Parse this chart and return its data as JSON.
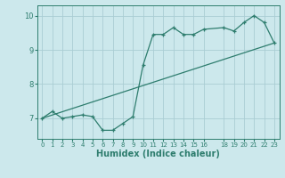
{
  "xlabel": "Humidex (Indice chaleur)",
  "bg_color": "#cce8ec",
  "grid_color": "#aacdd4",
  "line_color": "#2e7d6e",
  "curve_x": [
    0,
    1,
    2,
    3,
    4,
    5,
    6,
    7,
    8,
    9,
    10,
    11,
    12,
    13,
    14,
    15,
    16,
    18,
    19,
    20,
    21,
    22,
    23
  ],
  "curve_y": [
    7.0,
    7.2,
    7.0,
    7.05,
    7.1,
    7.05,
    6.65,
    6.65,
    6.85,
    7.05,
    8.55,
    9.45,
    9.45,
    9.65,
    9.45,
    9.45,
    9.6,
    9.65,
    9.55,
    9.8,
    10.0,
    9.8,
    9.2
  ],
  "trend_x": [
    0,
    23
  ],
  "trend_y": [
    7.0,
    9.2
  ],
  "xlim": [
    -0.5,
    23.5
  ],
  "ylim": [
    6.4,
    10.3
  ],
  "yticks": [
    7,
    8,
    9,
    10
  ],
  "xticks": [
    0,
    1,
    2,
    3,
    4,
    5,
    6,
    7,
    8,
    9,
    10,
    11,
    12,
    13,
    14,
    15,
    16,
    18,
    19,
    20,
    21,
    22,
    23
  ]
}
